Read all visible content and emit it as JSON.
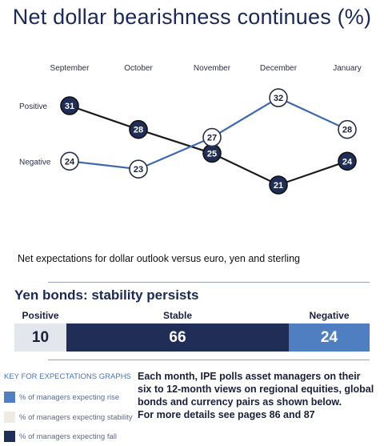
{
  "title": "Net dollar bearishness continues (%)",
  "caption": "Net expectations for dollar outlook versus euro, yen and sterling",
  "colors": {
    "navy": "#1f2d57",
    "blue": "#4f7fc0",
    "light": "#e6e9f0",
    "white": "#ffffff",
    "line_dark": "#1b1b1b",
    "line_blue": "#3f69ad"
  },
  "chart_data": {
    "type": "line",
    "title": "Net dollar bearishness continues (%)",
    "categories": [
      "September",
      "October",
      "November",
      "December",
      "January"
    ],
    "series": [
      {
        "name": "Positive",
        "values": [
          31,
          28,
          25,
          21,
          24
        ],
        "style": "filled-navy"
      },
      {
        "name": "Negative",
        "values": [
          24,
          23,
          27,
          32,
          28
        ],
        "style": "open-white"
      }
    ],
    "grid": false
  },
  "yen": {
    "subtitle": "Yen bonds: stability persists",
    "headers": {
      "positive": "Positive",
      "stable": "Stable",
      "negative": "Negative"
    },
    "values": {
      "positive": "10",
      "stable": "66",
      "negative": "24"
    },
    "shares": {
      "positive": 10,
      "stable": 66,
      "negative": 24
    }
  },
  "key": {
    "title": "KEY FOR EXPECTATIONS GRAPHS",
    "items": [
      {
        "label": "% of managers expecting rise",
        "color": "#4f7fc0"
      },
      {
        "label": "% of managers expecting stability",
        "color": "#eeece2"
      },
      {
        "label": "% of managers expecting fall",
        "color": "#1f2d57"
      }
    ]
  },
  "info_lines": [
    "Each month, IPE polls asset managers on their",
    "six to 12-month views on regional equities, global",
    "bonds and currency pairs as shown below.",
    "For more details see pages 86 and 87"
  ]
}
